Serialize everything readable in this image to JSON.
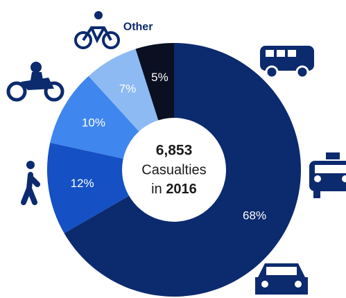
{
  "chart_data": {
    "type": "donut",
    "categories": [
      null,
      null,
      null,
      null,
      "Other"
    ],
    "values": [
      68,
      12,
      10,
      7,
      5
    ],
    "value_labels": [
      "68%",
      "12%",
      "10%",
      "7%",
      "5%"
    ],
    "colors": [
      "#0c2a6e",
      "#1550c4",
      "#3f86ee",
      "#8dbaf3",
      "#0a0f22"
    ],
    "annotations": [
      "6,853",
      "Casualties",
      "in",
      "2016"
    ]
  }
}
